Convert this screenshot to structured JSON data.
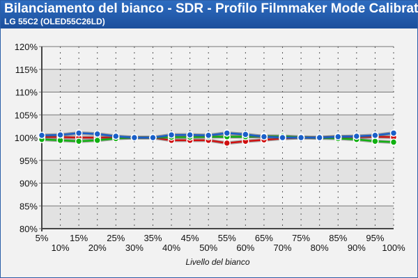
{
  "header": {
    "title": "Bilanciamento del bianco - SDR - Profilo Filmmaker Mode Calibrato",
    "subtitle": "LG 55C2 (OLED55C26LD)"
  },
  "chart_data": {
    "type": "line",
    "title": "Bilanciamento del bianco - SDR - Profilo Filmmaker Mode Calibrato",
    "xlabel": "Livello del bianco",
    "ylabel": "",
    "categories": [
      "5%",
      "10%",
      "15%",
      "20%",
      "25%",
      "30%",
      "35%",
      "40%",
      "45%",
      "50%",
      "55%",
      "60%",
      "65%",
      "70%",
      "75%",
      "80%",
      "85%",
      "90%",
      "95%",
      "100%"
    ],
    "yticks": [
      "80%",
      "85%",
      "90%",
      "95%",
      "100%",
      "105%",
      "110%",
      "115%",
      "120%"
    ],
    "ylim": [
      80,
      120
    ],
    "grid": true,
    "series": [
      {
        "color": "#d01010",
        "values": [
          100.2,
          100.1,
          100.0,
          100.0,
          100.0,
          100.0,
          100.0,
          99.4,
          99.4,
          99.4,
          98.8,
          99.2,
          99.5,
          99.8,
          100.0,
          100.0,
          100.2,
          100.1,
          100.2,
          100.1
        ]
      },
      {
        "color": "#10b010",
        "values": [
          99.6,
          99.4,
          99.2,
          99.4,
          99.8,
          100.0,
          100.0,
          100.1,
          100.1,
          100.2,
          100.2,
          100.2,
          100.3,
          100.3,
          100.1,
          99.9,
          99.8,
          99.6,
          99.2,
          99.0
        ]
      },
      {
        "color": "#1a5fc8",
        "values": [
          100.5,
          100.6,
          101.0,
          100.8,
          100.3,
          100.0,
          100.0,
          100.6,
          100.6,
          100.5,
          101.0,
          100.7,
          100.2,
          100.0,
          100.0,
          100.0,
          100.2,
          100.3,
          100.5,
          101.0
        ]
      }
    ]
  }
}
